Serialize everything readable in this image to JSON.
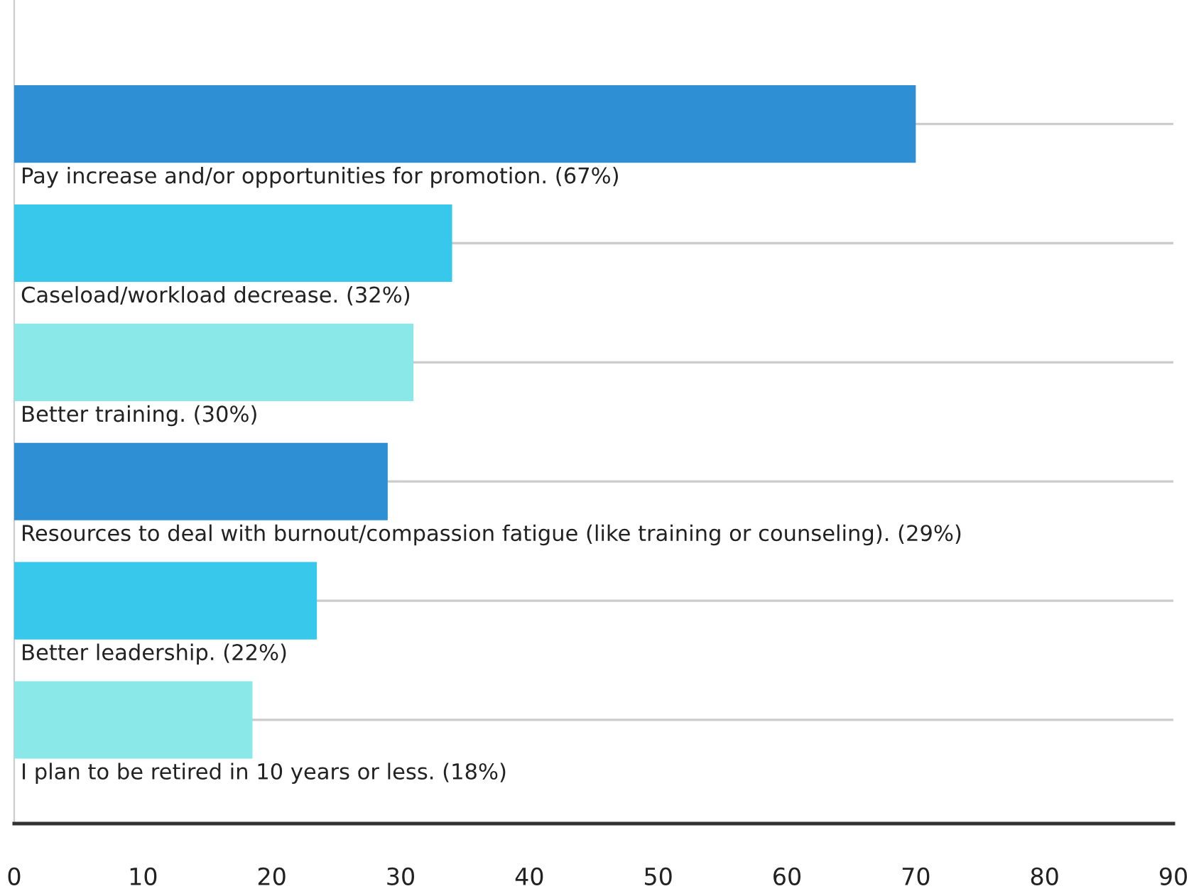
{
  "chart_data": {
    "type": "bar",
    "orientation": "horizontal",
    "categories": [
      "Pay increase and/or opportunities for promotion. (67%)",
      "Caseload/workload decrease. (32%)",
      "Better training. (30%)",
      "Resources to deal with burnout/compassion fatigue (like training or counseling). (29%)",
      "Better leadership. (22%)",
      "I plan to be retired in 10 years or less. (18%)"
    ],
    "values": [
      70,
      34,
      31,
      29,
      23.5,
      18.5
    ],
    "colors": [
      "#2e8fd4",
      "#38c8ec",
      "#8ae8e8",
      "#2e8fd4",
      "#38c8ec",
      "#8ae8e8"
    ],
    "xlim": [
      0,
      90
    ],
    "xticks": [
      0,
      10,
      20,
      30,
      40,
      50,
      60,
      70,
      80,
      90
    ],
    "grid": "y",
    "legend": false
  }
}
